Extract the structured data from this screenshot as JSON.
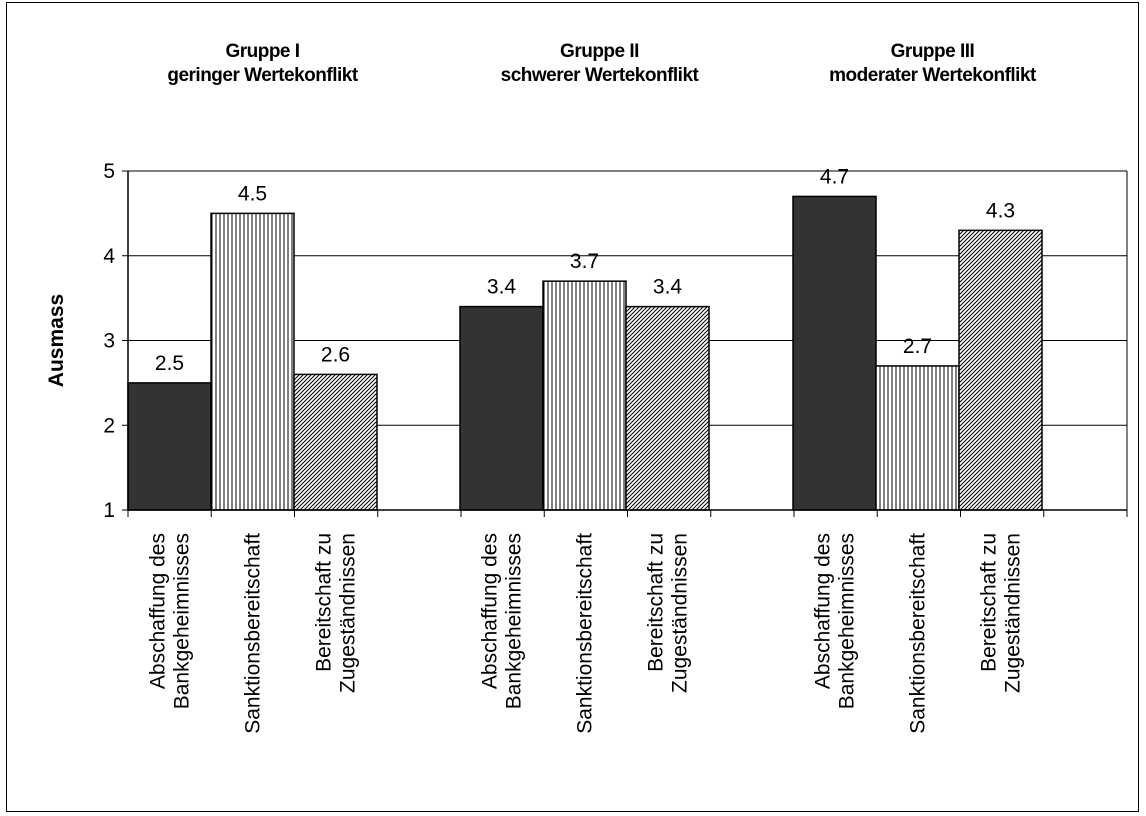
{
  "chart_data": {
    "type": "bar",
    "ylabel": "Ausmass",
    "ylim": [
      1,
      5
    ],
    "yticks": [
      "1",
      "2",
      "3",
      "4",
      "5"
    ],
    "grid": true,
    "groups": [
      {
        "title_line1": "Gruppe I",
        "title_line2": "geringer Wertekonflikt",
        "categories": [
          {
            "line1": "Abschaffung des",
            "line2": "Bankgeheimnisses"
          },
          {
            "line1": "Sanktionsbereitschaft",
            "line2": ""
          },
          {
            "line1": "Bereitschaft zu",
            "line2": "Zugeständnissen"
          }
        ],
        "values": [
          2.5,
          4.5,
          2.6
        ],
        "labels": [
          "2.5",
          "4.5",
          "2.6"
        ]
      },
      {
        "title_line1": "Gruppe II",
        "title_line2": "schwerer Wertekonflikt",
        "categories": [
          {
            "line1": "Abschaffung des",
            "line2": "Bankgeheimnisses"
          },
          {
            "line1": "Sanktionsbereitschaft",
            "line2": ""
          },
          {
            "line1": "Bereitschaft zu",
            "line2": "Zugeständnissen"
          }
        ],
        "values": [
          3.4,
          3.7,
          3.4
        ],
        "labels": [
          "3.4",
          "3.7",
          "3.4"
        ]
      },
      {
        "title_line1": "Gruppe III",
        "title_line2": "moderater Wertekonflikt",
        "categories": [
          {
            "line1": "Abschaffung des",
            "line2": "Bankgeheimnisses"
          },
          {
            "line1": "Sanktionsbereitschaft",
            "line2": ""
          },
          {
            "line1": "Bereitschaft zu",
            "line2": "Zugeständnissen"
          }
        ],
        "values": [
          4.7,
          2.7,
          4.3
        ],
        "labels": [
          "4.7",
          "2.7",
          "4.3"
        ]
      }
    ],
    "colors": {
      "solid": "#333333",
      "pattern_line": "#000000",
      "grid": "#000000"
    }
  }
}
